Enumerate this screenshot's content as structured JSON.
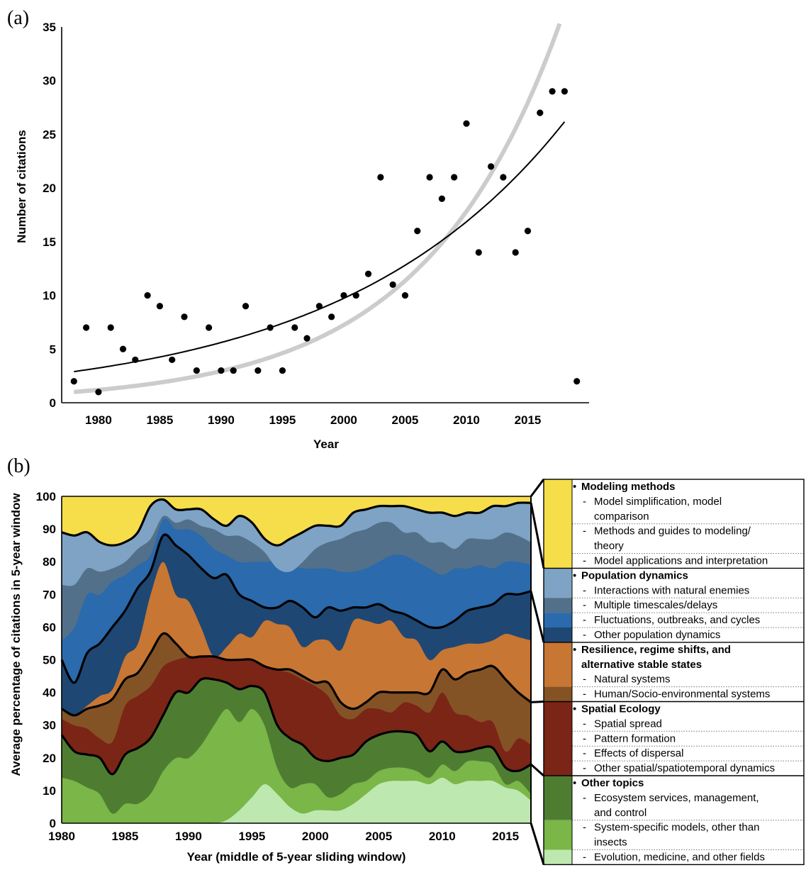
{
  "panel_a_label": "(a)",
  "panel_b_label": "(b)",
  "chart_data": [
    {
      "type": "scatter",
      "xlabel": "Year",
      "ylabel": "Number of citations",
      "xlim": [
        1977,
        2020
      ],
      "ylim": [
        0,
        35
      ],
      "xticks": [
        1980,
        1985,
        1990,
        1995,
        2000,
        2005,
        2010,
        2015
      ],
      "yticks": [
        0,
        5,
        10,
        15,
        20,
        25,
        30,
        35
      ],
      "points": [
        [
          1978,
          2
        ],
        [
          1979,
          7
        ],
        [
          1980,
          1
        ],
        [
          1981,
          7
        ],
        [
          1982,
          5
        ],
        [
          1983,
          4
        ],
        [
          1984,
          10
        ],
        [
          1985,
          9
        ],
        [
          1986,
          4
        ],
        [
          1987,
          8
        ],
        [
          1988,
          3
        ],
        [
          1989,
          7
        ],
        [
          1990,
          3
        ],
        [
          1991,
          3
        ],
        [
          1992,
          9
        ],
        [
          1993,
          3
        ],
        [
          1994,
          7
        ],
        [
          1995,
          3
        ],
        [
          1996,
          7
        ],
        [
          1997,
          6
        ],
        [
          1998,
          9
        ],
        [
          1999,
          8
        ],
        [
          2000,
          10
        ],
        [
          2001,
          10
        ],
        [
          2002,
          12
        ],
        [
          2003,
          21
        ],
        [
          2004,
          11
        ],
        [
          2005,
          10
        ],
        [
          2006,
          16
        ],
        [
          2007,
          21
        ],
        [
          2008,
          19
        ],
        [
          2009,
          21
        ],
        [
          2010,
          26
        ],
        [
          2011,
          14
        ],
        [
          2012,
          22
        ],
        [
          2013,
          21
        ],
        [
          2014,
          14
        ],
        [
          2015,
          16
        ],
        [
          2016,
          27
        ],
        [
          2017,
          29
        ],
        [
          2018,
          29
        ],
        [
          2019,
          2
        ]
      ],
      "fits": [
        {
          "color": "#cccccc",
          "x": [
            1978,
            2017.6
          ],
          "y0": 1.0,
          "rate": 0.09
        },
        {
          "color": "#000000",
          "x": [
            1978,
            2018
          ],
          "y0": 2.9,
          "rate": 0.055
        }
      ],
      "grid": false
    },
    {
      "type": "area",
      "xlabel": "Year (middle of 5-year sliding window)",
      "ylabel": "Average percentage of citations in 5-year window",
      "xlim": [
        1980,
        2017
      ],
      "ylim": [
        0,
        100
      ],
      "xticks": [
        1980,
        1985,
        1990,
        1995,
        2000,
        2005,
        2010,
        2015
      ],
      "yticks": [
        0,
        10,
        20,
        30,
        40,
        50,
        60,
        70,
        80,
        90,
        100
      ],
      "x": [
        1980,
        1981,
        1982,
        1983,
        1984,
        1985,
        1986,
        1987,
        1988,
        1989,
        1990,
        1991,
        1992,
        1993,
        1994,
        1995,
        1996,
        1997,
        1998,
        1999,
        2000,
        2001,
        2002,
        2003,
        2004,
        2005,
        2006,
        2007,
        2008,
        2009,
        2010,
        2011,
        2012,
        2013,
        2014,
        2015,
        2016,
        2017
      ],
      "boundaries": {
        "b1": [
          0,
          0,
          0,
          0,
          0,
          0,
          0,
          0,
          0,
          0,
          0,
          0,
          0,
          1,
          4,
          8,
          12,
          9,
          5,
          3,
          4,
          4,
          4,
          6,
          9,
          12,
          13,
          13,
          13,
          12,
          14,
          12,
          13,
          13,
          13,
          11,
          10,
          7
        ],
        "b2": [
          14,
          13,
          11,
          9,
          3,
          6,
          6,
          9,
          16,
          20,
          20,
          24,
          30,
          35,
          31,
          35,
          30,
          17,
          11,
          12,
          12,
          8,
          9,
          12,
          13,
          16,
          17,
          17,
          16,
          14,
          18,
          16,
          19,
          19,
          18,
          12,
          13,
          9
        ],
        "b3": [
          27,
          22,
          21,
          20,
          15,
          21,
          23,
          26,
          33,
          40,
          40,
          44,
          44,
          43,
          41,
          42,
          40,
          30,
          26,
          24,
          20,
          19,
          20,
          21,
          25,
          27,
          28,
          28,
          27,
          22,
          25,
          22,
          22,
          23,
          23,
          17,
          16,
          18
        ],
        "b4": [
          32,
          30,
          29,
          26,
          25,
          36,
          39,
          42,
          48,
          50,
          51,
          52,
          52,
          51,
          51,
          50,
          49,
          47,
          46,
          44,
          42,
          39,
          33,
          32,
          35,
          35,
          34,
          37,
          36,
          34,
          40,
          34,
          33,
          31,
          31,
          22,
          26,
          24
        ],
        "b5": [
          35,
          33,
          35,
          36,
          38,
          44,
          46,
          52,
          58,
          55,
          51,
          51,
          51,
          50,
          50,
          50,
          48,
          47,
          47,
          45,
          43,
          43,
          37,
          35,
          37,
          40,
          40,
          40,
          40,
          40,
          47,
          44,
          46,
          47,
          48,
          44,
          40,
          37
        ],
        "b6": [
          35,
          33,
          36,
          39,
          41,
          51,
          55,
          70,
          80,
          70,
          68,
          60,
          51,
          54,
          58,
          57,
          62,
          61,
          60,
          54,
          56,
          56,
          53,
          62,
          62,
          61,
          62,
          57,
          56,
          50,
          53,
          54,
          55,
          55,
          56,
          58,
          57,
          56
        ],
        "b7": [
          50,
          43,
          52,
          55,
          60,
          65,
          72,
          77,
          88,
          85,
          82,
          78,
          75,
          76,
          70,
          68,
          66,
          66,
          68,
          66,
          63,
          66,
          65,
          66,
          66,
          67,
          65,
          64,
          62,
          60,
          60,
          62,
          65,
          66,
          67,
          70,
          70,
          71
        ],
        "b8": [
          56,
          60,
          70,
          70,
          74,
          76,
          79,
          82,
          93,
          90,
          90,
          88,
          84,
          82,
          80,
          80,
          80,
          80,
          79,
          78,
          78,
          78,
          77,
          77,
          78,
          80,
          82,
          82,
          80,
          78,
          76,
          78,
          78,
          79,
          78,
          80,
          80,
          79
        ],
        "b9": [
          73,
          73,
          78,
          77,
          78,
          80,
          84,
          87,
          94,
          92,
          93,
          91,
          90,
          88,
          88,
          86,
          83,
          78,
          77,
          80,
          84,
          86,
          87,
          89,
          90,
          92,
          92,
          89,
          89,
          86,
          86,
          84,
          87,
          87,
          87,
          89,
          88,
          86
        ],
        "b10": [
          89,
          88,
          89,
          86,
          85,
          86,
          89,
          97,
          99,
          96,
          96,
          96,
          93,
          91,
          94,
          92,
          87,
          85,
          87,
          89,
          91,
          91,
          91,
          95,
          96,
          97,
          97,
          97,
          96,
          95,
          95,
          94,
          95,
          95,
          97,
          97,
          98,
          98
        ],
        "b11": [
          100,
          100,
          100,
          100,
          100,
          100,
          100,
          100,
          100,
          100,
          100,
          100,
          100,
          100,
          100,
          100,
          100,
          100,
          100,
          100,
          100,
          100,
          100,
          100,
          100,
          100,
          100,
          100,
          100,
          100,
          100,
          100,
          100,
          100,
          100,
          100,
          100,
          100
        ]
      },
      "series_order": [
        "b1",
        "b2",
        "b3",
        "b4",
        "b5",
        "b6",
        "b7",
        "b8",
        "b9",
        "b10",
        "b11"
      ],
      "series_colors": [
        "#bde8b0",
        "#7ab648",
        "#4e7d32",
        "#7b2516",
        "#845325",
        "#c87633",
        "#1f4773",
        "#2a6aad",
        "#53708a",
        "#7ea3c4",
        "#f6dd4a"
      ],
      "major_outline": [
        "b3",
        "b5",
        "b7",
        "b10"
      ],
      "legend_groups": [
        {
          "head": "Modeling methods",
          "color": "#f6dd4a",
          "items": [
            {
              "text": [
                "Model simplification, model",
                "comparison"
              ],
              "color": null
            },
            {
              "text": [
                "Methods and guides to modeling/",
                "theory"
              ],
              "color": null
            },
            {
              "text": [
                "Model applications and interpretation"
              ],
              "color": null
            }
          ]
        },
        {
          "head": "Population dynamics",
          "color": null,
          "items": [
            {
              "text": [
                "Interactions with natural enemies"
              ],
              "color": "#7ea3c4"
            },
            {
              "text": [
                "Multiple timescales/delays"
              ],
              "color": "#53708a"
            },
            {
              "text": [
                "Fluctuations, outbreaks, and cycles"
              ],
              "color": "#2a6aad"
            },
            {
              "text": [
                "Other population dynamics"
              ],
              "color": "#1f4773"
            }
          ]
        },
        {
          "head": "Resilience, regime shifts, and",
          "head2": "alternative stable states",
          "color": null,
          "items": [
            {
              "text": [
                "Natural systems"
              ],
              "color": "#c87633"
            },
            {
              "text": [
                "Human/Socio-environmental systems"
              ],
              "color": "#845325"
            }
          ]
        },
        {
          "head": "Spatial Ecology",
          "color": "#7b2516",
          "items": [
            {
              "text": [
                "Spatial spread"
              ],
              "color": null
            },
            {
              "text": [
                "Pattern formation"
              ],
              "color": null
            },
            {
              "text": [
                "Effects of dispersal"
              ],
              "color": null
            },
            {
              "text": [
                "Other spatial/spatiotemporal dynamics"
              ],
              "color": null
            }
          ]
        },
        {
          "head": "Other topics",
          "color": null,
          "items": [
            {
              "text": [
                "Ecosystem services, management,",
                "and control"
              ],
              "color": "#4e7d32"
            },
            {
              "text": [
                "System-specific models, other than",
                "insects"
              ],
              "color": "#7ab648"
            },
            {
              "text": [
                "Evolution, medicine, and other fields"
              ],
              "color": "#bde8b0"
            }
          ]
        }
      ]
    }
  ]
}
